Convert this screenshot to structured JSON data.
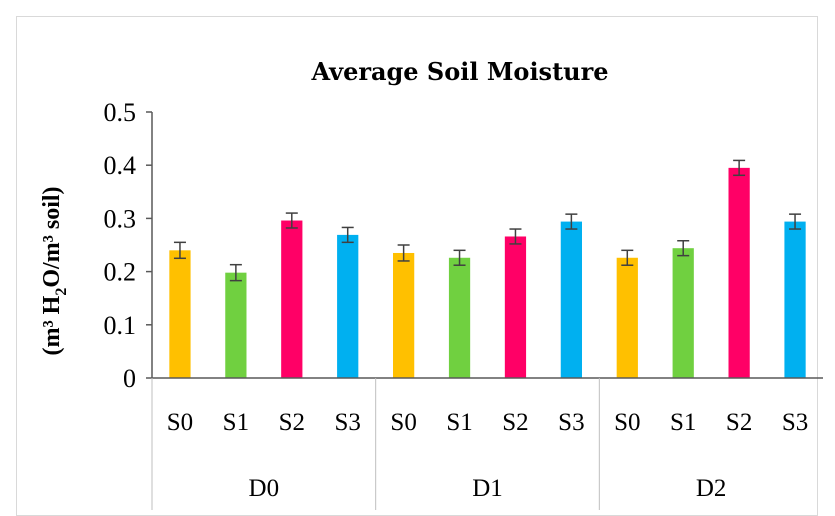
{
  "chart_data": {
    "type": "bar",
    "title": "Average Soil Moisture",
    "ylabel_parts": [
      "(m³ H",
      "2",
      "O/m³ soil)"
    ],
    "ylim": [
      0,
      0.5
    ],
    "yticks": [
      "0",
      "0.1",
      "0.2",
      "0.3",
      "0.4",
      "0.5"
    ],
    "groups": [
      {
        "name": "D0",
        "bars": [
          {
            "label": "S0",
            "value": 0.24,
            "error": 0.015,
            "color": "#FFC000"
          },
          {
            "label": "S1",
            "value": 0.198,
            "error": 0.015,
            "color": "#70D040"
          },
          {
            "label": "S2",
            "value": 0.296,
            "error": 0.014,
            "color": "#FF0066"
          },
          {
            "label": "S3",
            "value": 0.269,
            "error": 0.014,
            "color": "#00B0F0"
          }
        ]
      },
      {
        "name": "D1",
        "bars": [
          {
            "label": "S0",
            "value": 0.235,
            "error": 0.015,
            "color": "#FFC000"
          },
          {
            "label": "S1",
            "value": 0.226,
            "error": 0.014,
            "color": "#70D040"
          },
          {
            "label": "S2",
            "value": 0.266,
            "error": 0.014,
            "color": "#FF0066"
          },
          {
            "label": "S3",
            "value": 0.294,
            "error": 0.014,
            "color": "#00B0F0"
          }
        ]
      },
      {
        "name": "D2",
        "bars": [
          {
            "label": "S0",
            "value": 0.226,
            "error": 0.014,
            "color": "#FFC000"
          },
          {
            "label": "S1",
            "value": 0.244,
            "error": 0.014,
            "color": "#70D040"
          },
          {
            "label": "S2",
            "value": 0.395,
            "error": 0.014,
            "color": "#FF0066"
          },
          {
            "label": "S3",
            "value": 0.294,
            "error": 0.014,
            "color": "#00B0F0"
          }
        ]
      }
    ],
    "grid": false,
    "legend": "none"
  }
}
